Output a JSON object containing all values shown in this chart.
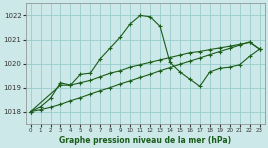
{
  "xlabel": "Graphe pression niveau de la mer (hPa)",
  "background_color": "#cce8e8",
  "line_color": "#1a5c1a",
  "grid_color": "#99cccc",
  "ylim": [
    1017.5,
    1022.5
  ],
  "xlim": [
    -0.5,
    23.5
  ],
  "yticks": [
    1018,
    1019,
    1020,
    1021,
    1022
  ],
  "xticks": [
    0,
    1,
    2,
    3,
    4,
    5,
    6,
    7,
    8,
    9,
    10,
    11,
    12,
    13,
    14,
    15,
    16,
    17,
    18,
    19,
    20,
    21,
    22,
    23
  ],
  "series1_x": [
    0,
    1,
    2,
    3,
    4,
    5,
    6,
    7,
    8,
    9,
    10,
    11,
    12,
    13,
    14,
    15,
    16,
    17,
    18,
    19,
    20,
    21,
    22,
    23
  ],
  "series1_y": [
    1018.0,
    1018.2,
    1018.55,
    1019.2,
    1019.1,
    1019.55,
    1019.6,
    1020.2,
    1020.65,
    1021.1,
    1021.65,
    1022.0,
    1021.95,
    1021.55,
    1020.05,
    1019.65,
    1019.35,
    1019.05,
    1019.65,
    1019.8,
    1019.85,
    1019.95,
    1020.3,
    1020.6
  ],
  "series2_x": [
    0,
    3,
    4,
    5,
    6,
    7,
    8,
    9,
    10,
    11,
    12,
    13,
    14,
    15,
    16,
    17,
    18,
    19,
    20,
    21,
    22,
    23
  ],
  "series2_y": [
    1018.0,
    1019.1,
    1019.1,
    1019.2,
    1019.3,
    1019.45,
    1019.6,
    1019.7,
    1019.85,
    1019.95,
    1020.05,
    1020.15,
    1020.25,
    1020.35,
    1020.45,
    1020.5,
    1020.58,
    1020.65,
    1020.72,
    1020.8,
    1020.88,
    1020.6
  ],
  "series3_x": [
    0,
    1,
    2,
    3,
    4,
    5,
    6,
    7,
    8,
    9,
    10,
    11,
    12,
    13,
    14,
    15,
    16,
    17,
    18,
    19,
    20,
    21,
    22,
    23
  ],
  "series3_y": [
    1018.0,
    1018.08,
    1018.18,
    1018.3,
    1018.45,
    1018.58,
    1018.73,
    1018.87,
    1019.0,
    1019.15,
    1019.28,
    1019.42,
    1019.55,
    1019.7,
    1019.83,
    1019.97,
    1020.1,
    1020.23,
    1020.37,
    1020.5,
    1020.63,
    1020.77,
    1020.9,
    1020.6
  ]
}
